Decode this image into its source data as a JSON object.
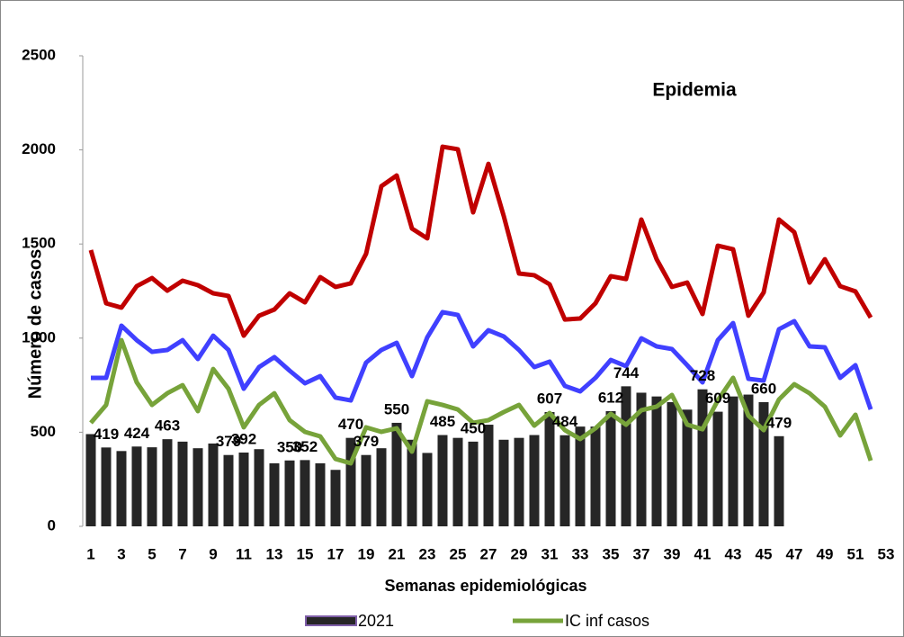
{
  "chart_data": {
    "type": "bar",
    "title": "Epidemia",
    "x_label": "Semanas epidemiológicas",
    "y_label": "Número de casos",
    "categories": [
      1,
      null,
      3,
      null,
      5,
      null,
      7,
      null,
      9,
      null,
      11,
      null,
      13,
      null,
      15,
      null,
      17,
      null,
      19,
      null,
      21,
      null,
      23,
      null,
      25,
      null,
      27,
      null,
      29,
      null,
      31,
      null,
      33,
      null,
      35,
      null,
      37,
      null,
      39,
      null,
      41,
      null,
      43,
      null,
      45,
      null,
      47,
      null,
      49,
      null,
      51,
      null,
      53
    ],
    "ylim": [
      0,
      2500
    ],
    "yticks": [
      0,
      500,
      1000,
      1500,
      2000,
      2500
    ],
    "series": [
      {
        "name": "2021",
        "type": "bar",
        "color": "#262626",
        "values": [
          490,
          419,
          400,
          424,
          420,
          463,
          450,
          415,
          440,
          379,
          392,
          410,
          335,
          350,
          352,
          335,
          300,
          470,
          379,
          415,
          550,
          460,
          390,
          485,
          470,
          450,
          540,
          460,
          470,
          485,
          607,
          484,
          530,
          530,
          612,
          744,
          710,
          690,
          660,
          620,
          728,
          609,
          690,
          700,
          660,
          479,
          null,
          null,
          null,
          null,
          null,
          null,
          null
        ],
        "value_labels": [
          null,
          "419",
          null,
          "424",
          null,
          "463",
          null,
          null,
          null,
          "379",
          "392",
          null,
          null,
          "350",
          "352",
          null,
          null,
          "470",
          "379",
          null,
          "550",
          null,
          null,
          "485",
          null,
          "450",
          null,
          null,
          null,
          null,
          "607",
          "484",
          null,
          null,
          "612",
          "744",
          null,
          null,
          null,
          null,
          "728",
          "609",
          null,
          null,
          "660",
          "479",
          null,
          null,
          null,
          null,
          null,
          null,
          null
        ]
      },
      {
        "type": "line",
        "color": "#c00000",
        "values": [
          1468,
          1185,
          1162,
          1276,
          1319,
          1252,
          1305,
          1281,
          1238,
          1224,
          1013,
          1119,
          1152,
          1238,
          1190,
          1324,
          1272,
          1291,
          1448,
          1807,
          1864,
          1582,
          1530,
          2017,
          2003,
          1668,
          1926,
          1649,
          1343,
          1334,
          1286,
          1099,
          1104,
          1185,
          1329,
          1314,
          1630,
          1419,
          1272,
          1295,
          1128,
          1491,
          1472,
          1119,
          1243,
          1630,
          1563,
          1295,
          1419,
          1276,
          1248,
          1109,
          null
        ]
      },
      {
        "type": "line",
        "color": "#4040ff",
        "values": [
          789,
          789,
          1066,
          989,
          927,
          937,
          989,
          889,
          1013,
          937,
          731,
          846,
          899,
          827,
          760,
          798,
          684,
          669,
          870,
          937,
          975,
          798,
          1004,
          1138,
          1123,
          956,
          1042,
          1009,
          937,
          846,
          875,
          746,
          717,
          789,
          884,
          851,
          999,
          956,
          942,
          856,
          765,
          989,
          1080,
          784,
          774,
          1047,
          1090,
          956,
          951,
          789,
          856,
          621,
          null
        ]
      },
      {
        "name": "IC inf casos",
        "type": "line",
        "color": "#77a33a",
        "values": [
          550,
          645,
          989,
          765,
          645,
          707,
          750,
          612,
          836,
          731,
          526,
          645,
          707,
          564,
          502,
          478,
          358,
          335,
          526,
          502,
          521,
          397,
          664,
          645,
          621,
          550,
          564,
          607,
          645,
          535,
          602,
          511,
          464,
          521,
          598,
          540,
          617,
          636,
          698,
          540,
          516,
          669,
          789,
          588,
          511,
          674,
          755,
          707,
          636,
          483,
          593,
          349,
          null
        ]
      }
    ]
  }
}
